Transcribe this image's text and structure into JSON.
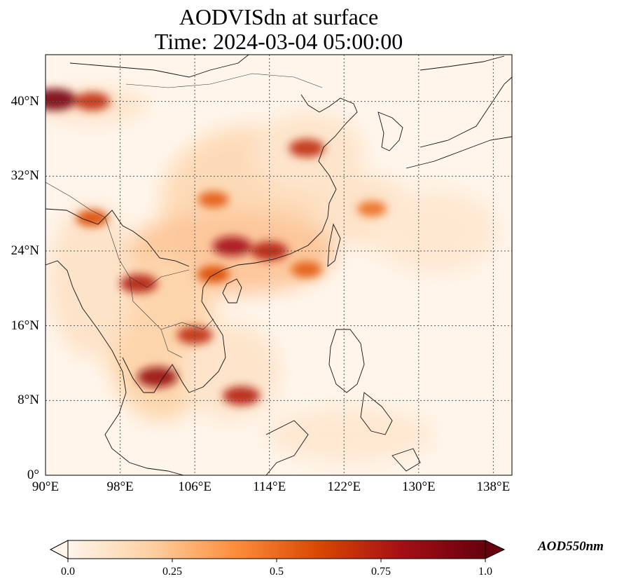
{
  "title_line1": "AODVISdn at surface",
  "title_line2": "Time: 2024-03-04 05:00:00",
  "map": {
    "lon_range": [
      90,
      140
    ],
    "lat_range": [
      0,
      45
    ],
    "lon_ticks": [
      {
        "value": 90,
        "label": "90°E"
      },
      {
        "value": 98,
        "label": "98°E"
      },
      {
        "value": 106,
        "label": "106°E"
      },
      {
        "value": 114,
        "label": "114°E"
      },
      {
        "value": 122,
        "label": "122°E"
      },
      {
        "value": 130,
        "label": "130°E"
      },
      {
        "value": 138,
        "label": "138°E"
      }
    ],
    "lat_ticks": [
      {
        "value": 0,
        "label": "0°"
      },
      {
        "value": 8,
        "label": "8°N"
      },
      {
        "value": 16,
        "label": "16°N"
      },
      {
        "value": 24,
        "label": "24°N"
      },
      {
        "value": 32,
        "label": "32°N"
      },
      {
        "value": 40,
        "label": "40°N"
      }
    ],
    "gridlines": true
  },
  "colorbar": {
    "label": "AOD550nm",
    "min": 0.0,
    "max": 1.0,
    "colormap": [
      "#fff5eb",
      "#fdd0a2",
      "#fd8d3c",
      "#d94801",
      "#a50f15",
      "#67000d"
    ],
    "ticks": [
      {
        "value": 0.0,
        "label": "0.0"
      },
      {
        "value": 0.25,
        "label": "0.25"
      },
      {
        "value": 0.5,
        "label": "0.5"
      },
      {
        "value": 0.75,
        "label": "0.75"
      },
      {
        "value": 1.0,
        "label": "1.0"
      }
    ]
  },
  "aerosol_features": [
    {
      "lon": 91,
      "lat": 40.2,
      "value": 0.95
    },
    {
      "lon": 95,
      "lat": 40.0,
      "value": 0.7
    },
    {
      "lon": 110,
      "lat": 24.5,
      "value": 0.8
    },
    {
      "lon": 114,
      "lat": 24.0,
      "value": 0.75
    },
    {
      "lon": 102,
      "lat": 10.5,
      "value": 0.85
    },
    {
      "lon": 111,
      "lat": 8.5,
      "value": 0.75
    },
    {
      "lon": 106,
      "lat": 15.0,
      "value": 0.7
    },
    {
      "lon": 95,
      "lat": 27.5,
      "value": 0.6
    },
    {
      "lon": 100,
      "lat": 20.5,
      "value": 0.75
    },
    {
      "lon": 108,
      "lat": 29.5,
      "value": 0.55
    },
    {
      "lon": 118,
      "lat": 35.0,
      "value": 0.7
    },
    {
      "lon": 125,
      "lat": 28.5,
      "value": 0.5
    },
    {
      "lon": 108,
      "lat": 21.5,
      "value": 0.6
    },
    {
      "lon": 118,
      "lat": 22.0,
      "value": 0.55
    }
  ]
}
